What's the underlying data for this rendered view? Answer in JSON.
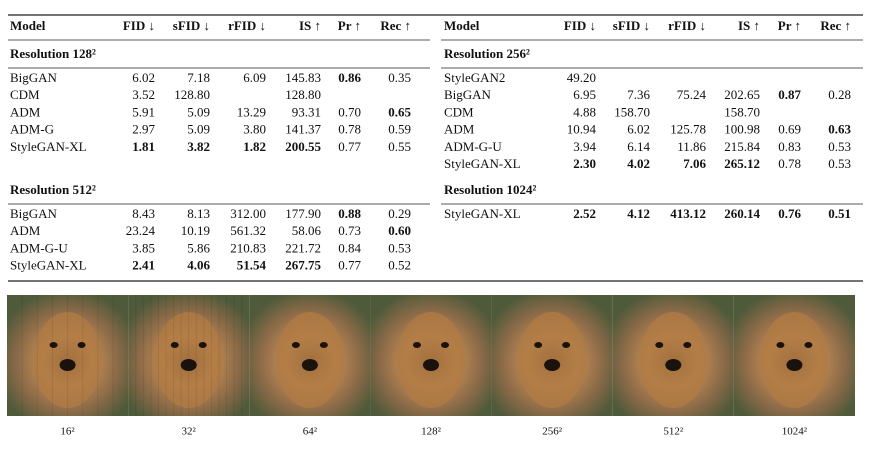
{
  "tables": [
    {
      "header": [
        "Model",
        "FID ↓",
        "sFID ↓",
        "rFID ↓",
        "IS ↑",
        "Pr ↑",
        "Rec ↑"
      ],
      "sections": [
        {
          "title": "Resolution 128²",
          "rows": [
            {
              "cells": [
                "BigGAN",
                "6.02",
                "7.18",
                "6.09",
                "145.83",
                "0.86",
                "0.35"
              ],
              "bold": [
                5
              ]
            },
            {
              "cells": [
                "CDM",
                "3.52",
                "128.80",
                null,
                "128.80",
                null,
                null
              ],
              "bold": []
            },
            {
              "cells": [
                "ADM",
                "5.91",
                "5.09",
                "13.29",
                "93.31",
                "0.70",
                "0.65"
              ],
              "bold": [
                6
              ]
            },
            {
              "cells": [
                "ADM-G",
                "2.97",
                "5.09",
                "3.80",
                "141.37",
                "0.78",
                "0.59"
              ],
              "bold": []
            },
            {
              "cells": [
                "StyleGAN-XL",
                "1.81",
                "3.82",
                "1.82",
                "200.55",
                "0.77",
                "0.55"
              ],
              "bold": [
                1,
                2,
                3,
                4
              ]
            }
          ]
        },
        {
          "title": "Resolution 512²",
          "rows": [
            {
              "cells": [
                "BigGAN",
                "8.43",
                "8.13",
                "312.00",
                "177.90",
                "0.88",
                "0.29"
              ],
              "bold": [
                5
              ]
            },
            {
              "cells": [
                "ADM",
                "23.24",
                "10.19",
                "561.32",
                "58.06",
                "0.73",
                "0.60"
              ],
              "bold": [
                6
              ]
            },
            {
              "cells": [
                "ADM-G-U",
                "3.85",
                "5.86",
                "210.83",
                "221.72",
                "0.84",
                "0.53"
              ],
              "bold": []
            },
            {
              "cells": [
                "StyleGAN-XL",
                "2.41",
                "4.06",
                "51.54",
                "267.75",
                "0.77",
                "0.52"
              ],
              "bold": [
                1,
                2,
                3,
                4
              ]
            }
          ]
        }
      ]
    },
    {
      "header": [
        "Model",
        "FID ↓",
        "sFID ↓",
        "rFID ↓",
        "IS ↑",
        "Pr ↑",
        "Rec ↑"
      ],
      "sections": [
        {
          "title": "Resolution 256²",
          "rows": [
            {
              "cells": [
                "StyleGAN2",
                "49.20",
                null,
                null,
                null,
                null,
                null
              ],
              "bold": []
            },
            {
              "cells": [
                "BigGAN",
                "6.95",
                "7.36",
                "75.24",
                "202.65",
                "0.87",
                "0.28"
              ],
              "bold": [
                5
              ]
            },
            {
              "cells": [
                "CDM",
                "4.88",
                "158.70",
                null,
                "158.70",
                null,
                null
              ],
              "bold": []
            },
            {
              "cells": [
                "ADM",
                "10.94",
                "6.02",
                "125.78",
                "100.98",
                "0.69",
                "0.63"
              ],
              "bold": [
                6
              ]
            },
            {
              "cells": [
                "ADM-G-U",
                "3.94",
                "6.14",
                "11.86",
                "215.84",
                "0.83",
                "0.53"
              ],
              "bold": []
            },
            {
              "cells": [
                "StyleGAN-XL",
                "2.30",
                "4.02",
                "7.06",
                "265.12",
                "0.78",
                "0.53"
              ],
              "bold": [
                1,
                2,
                3,
                4
              ]
            }
          ]
        },
        {
          "title": "Resolution 1024²",
          "rows": [
            {
              "cells": [
                "StyleGAN-XL",
                "2.52",
                "4.12",
                "413.12",
                "260.14",
                "0.76",
                "0.51"
              ],
              "bold": [
                1,
                2,
                3,
                4,
                5,
                6
              ]
            }
          ]
        }
      ]
    }
  ],
  "images": {
    "labels": [
      "16²",
      "32²",
      "64²",
      "128²",
      "256²",
      "512²",
      "1024²"
    ]
  }
}
